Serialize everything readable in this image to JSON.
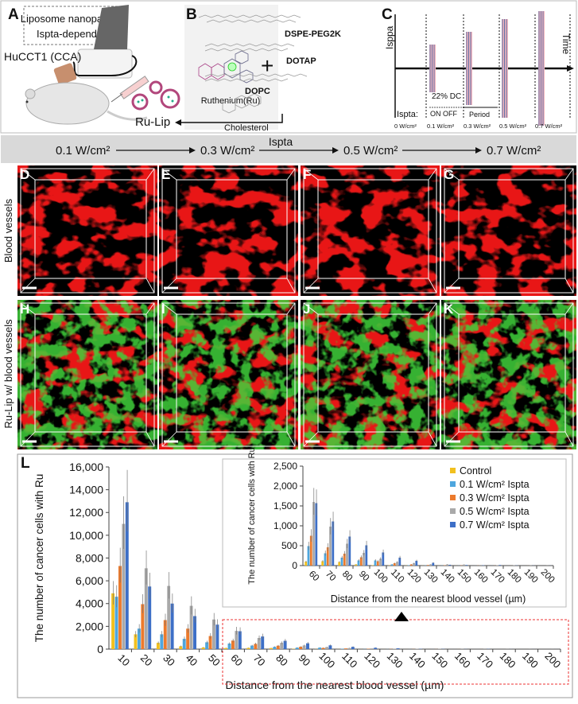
{
  "panel_a": {
    "label": "A",
    "box_text_line1": "Liposome nanoparticle,",
    "box_text_line2": "Ispta-dependent",
    "cell_line": "HuCCT1 (CCA)",
    "product": "Ru-Lip"
  },
  "panel_b": {
    "label": "B",
    "compound": "Ruthenium(Ru)",
    "plus": "+",
    "lipids": [
      "DSPE-PEG2K",
      "DOTAP",
      "DOPC",
      "Cholesterol"
    ]
  },
  "panel_c": {
    "label": "C",
    "y_axis": "Isppa",
    "x_axis": "Time",
    "duty_cycle": "22% DC",
    "on_off": "ON OFF",
    "period": "Period",
    "ispta_label": "Ispta:",
    "levels": [
      "0 W/cm²",
      "0.1 W/cm²",
      "0.3 W/cm²",
      "0.5 W/cm²",
      "0.7 W/cm²"
    ],
    "pulse_colors": {
      "pulse": "#5a6fa8",
      "shade": "#f4b6bd"
    }
  },
  "ispta_band": {
    "title": "Ispta",
    "levels": [
      "0.1 W/cm²",
      "0.3 W/cm²",
      "0.5 W/cm²",
      "0.7 W/cm²"
    ]
  },
  "images": {
    "row_labels": [
      "Blood vessels",
      "Ru-Lip w/ blood vessels"
    ],
    "row1_panels": [
      "D",
      "E",
      "F",
      "G"
    ],
    "row2_panels": [
      "H",
      "I",
      "J",
      "K"
    ],
    "channel_colors": {
      "vessels": "#e81818",
      "ru_lip": "#3fd13a"
    }
  },
  "panel_l": {
    "label": "L"
  },
  "chart_data": [
    {
      "type": "bar",
      "title": "",
      "xlabel": "Distance from the nearest blood vessel (µm)",
      "ylabel": "The number of cancer cells with Ru",
      "ylim": [
        0,
        16000
      ],
      "yticks": [
        "0",
        "2,000",
        "4,000",
        "6,000",
        "8,000",
        "10,000",
        "12,000",
        "14,000",
        "16,000"
      ],
      "categories": [
        "10",
        "20",
        "30",
        "40",
        "50",
        "60",
        "70",
        "80",
        "90",
        "100",
        "110",
        "120",
        "130",
        "140",
        "150",
        "160",
        "170",
        "180",
        "190",
        "200"
      ],
      "grid": false,
      "series": [
        {
          "name": "Control",
          "color": "#f2c01e",
          "values": [
            4900,
            1300,
            550,
            250,
            150,
            100,
            110,
            90,
            30,
            10,
            5,
            3,
            2,
            1,
            1,
            0,
            0,
            0,
            0,
            0
          ]
        },
        {
          "name": "0.1 W/cm² Ispta",
          "color": "#4ea6de",
          "values": [
            4600,
            1800,
            1300,
            900,
            600,
            490,
            310,
            200,
            130,
            130,
            30,
            10,
            5,
            3,
            2,
            1,
            1,
            0,
            0,
            0
          ]
        },
        {
          "name": "0.3 W/cm² Ispta",
          "color": "#ec7a2c",
          "values": [
            7300,
            3950,
            2550,
            1800,
            1150,
            750,
            460,
            300,
            210,
            110,
            60,
            30,
            15,
            8,
            5,
            3,
            2,
            1,
            1,
            0
          ]
        },
        {
          "name": "0.5 W/cm² Ispta",
          "color": "#a9a9a9",
          "values": [
            11000,
            7100,
            5550,
            3800,
            2600,
            1600,
            980,
            550,
            320,
            170,
            90,
            60,
            30,
            30,
            25,
            15,
            10,
            8,
            5,
            3
          ]
        },
        {
          "name": "0.7 W/cm² Ispta",
          "color": "#3d6fc7",
          "values": [
            12900,
            5500,
            4000,
            2900,
            2150,
            1570,
            1110,
            730,
            510,
            330,
            200,
            120,
            70,
            20,
            15,
            8,
            15,
            5,
            3,
            2
          ]
        }
      ]
    },
    {
      "type": "bar",
      "title": "",
      "xlabel": "Distance from the nearest blood vessel (µm)",
      "ylabel": "The number of cancer cells with Ru",
      "ylim": [
        0,
        2500
      ],
      "yticks": [
        "0",
        "500",
        "1,000",
        "1,500",
        "2,000",
        "2,500"
      ],
      "categories": [
        "60",
        "70",
        "80",
        "90",
        "100",
        "110",
        "120",
        "130",
        "140",
        "150",
        "160",
        "170",
        "180",
        "190",
        "200"
      ],
      "legend": "top-right",
      "grid": false,
      "series": [
        {
          "name": "Control",
          "color": "#f2c01e",
          "values": [
            100,
            110,
            90,
            30,
            10,
            5,
            3,
            2,
            1,
            1,
            0,
            0,
            0,
            0,
            0
          ]
        },
        {
          "name": "0.1 W/cm² Ispta",
          "color": "#4ea6de",
          "values": [
            490,
            310,
            200,
            130,
            130,
            30,
            10,
            5,
            3,
            2,
            1,
            1,
            0,
            0,
            0
          ]
        },
        {
          "name": "0.3 W/cm² Ispta",
          "color": "#ec7a2c",
          "values": [
            750,
            460,
            300,
            210,
            110,
            60,
            30,
            15,
            8,
            5,
            3,
            2,
            1,
            1,
            0
          ]
        },
        {
          "name": "0.5 W/cm² Ispta",
          "color": "#a9a9a9",
          "values": [
            1600,
            980,
            550,
            320,
            170,
            90,
            60,
            30,
            30,
            25,
            15,
            10,
            8,
            5,
            3
          ]
        },
        {
          "name": "0.7 W/cm² Ispta",
          "color": "#3d6fc7",
          "values": [
            1570,
            1110,
            730,
            510,
            330,
            200,
            120,
            70,
            20,
            15,
            8,
            15,
            5,
            3,
            2
          ]
        }
      ]
    }
  ]
}
